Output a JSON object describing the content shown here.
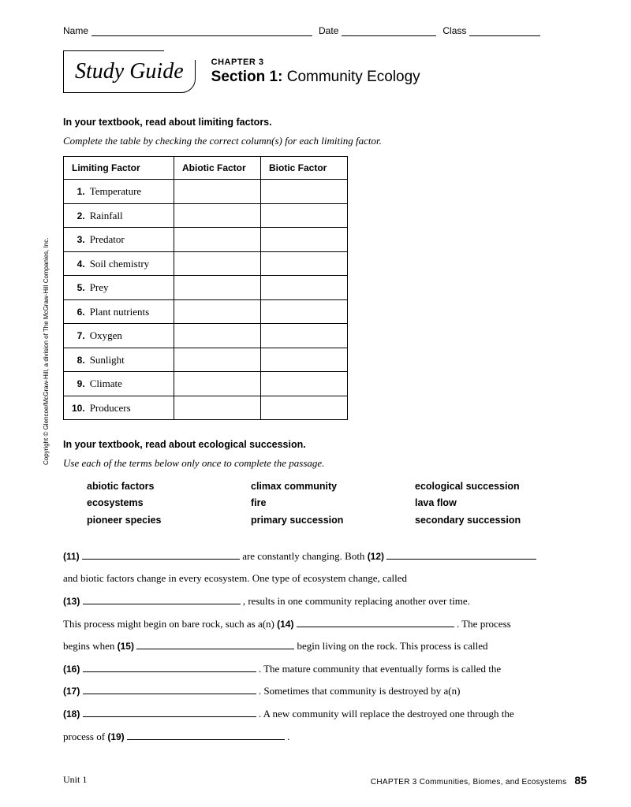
{
  "header": {
    "name_label": "Name",
    "date_label": "Date",
    "class_label": "Class"
  },
  "title": {
    "study_guide": "Study Guide",
    "chapter": "CHAPTER 3",
    "section_label": "Section 1:",
    "section_title": "Community Ecology"
  },
  "part1": {
    "heading": "In your textbook, read about limiting factors.",
    "instruction": "Complete the table by checking the correct column(s) for each limiting factor.",
    "table": {
      "headers": [
        "Limiting Factor",
        "Abiotic Factor",
        "Biotic Factor"
      ],
      "rows": [
        {
          "n": "1.",
          "label": "Temperature"
        },
        {
          "n": "2.",
          "label": "Rainfall"
        },
        {
          "n": "3.",
          "label": "Predator"
        },
        {
          "n": "4.",
          "label": "Soil chemistry"
        },
        {
          "n": "5.",
          "label": "Prey"
        },
        {
          "n": "6.",
          "label": "Plant nutrients"
        },
        {
          "n": "7.",
          "label": "Oxygen"
        },
        {
          "n": "8.",
          "label": "Sunlight"
        },
        {
          "n": "9.",
          "label": "Climate"
        },
        {
          "n": "10.",
          "label": "Producers"
        }
      ]
    }
  },
  "part2": {
    "heading": "In your textbook, read about ecological succession.",
    "instruction": "Use each of the terms below only once to complete the passage.",
    "terms": [
      "abiotic factors",
      "climax community",
      "ecological succession",
      "ecosystems",
      "fire",
      "lava flow",
      "pioneer species",
      "primary succession",
      "secondary succession"
    ],
    "passage": {
      "p11": "(11)",
      "t11": " are constantly changing. Both ",
      "p12": "(12)",
      "t12": "and biotic factors change in every ecosystem. One type of ecosystem change, called",
      "p13": "(13)",
      "t13": " , results in one community replacing another over time.",
      "t13b": "This process might begin on bare rock, such as a(n) ",
      "p14": "(14)",
      "t14": " . The process",
      "t14b": "begins when ",
      "p15": "(15)",
      "t15": " begin living on the rock. This process is called",
      "p16": "(16)",
      "t16": " . The mature community that eventually forms is called the",
      "p17": "(17)",
      "t17": " . Sometimes that community is destroyed by a(n)",
      "p18": "(18)",
      "t18": " . A new community will replace the destroyed one through the",
      "t18b": "process of ",
      "p19": "(19)",
      "t19": " ."
    }
  },
  "copyright": "Copyright © Glencoe/McGraw-Hill, a division of The McGraw-Hill Companies, Inc.",
  "footer": {
    "unit": "Unit 1",
    "chapter": "CHAPTER 3  Communities, Biomes, and Ecosystems",
    "page": "85"
  }
}
